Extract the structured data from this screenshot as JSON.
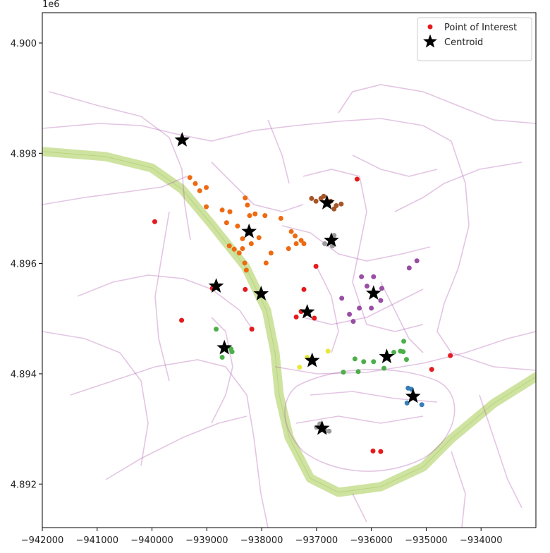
{
  "chart_data": {
    "type": "scatter",
    "y_offset_label": "1e6",
    "xlim": [
      -942000,
      -933000
    ],
    "ylim": [
      4.89121,
      4.90055
    ],
    "xticks": [
      {
        "value": -942000,
        "label": "−942000"
      },
      {
        "value": -941000,
        "label": "−941000"
      },
      {
        "value": -940000,
        "label": "−940000"
      },
      {
        "value": -939000,
        "label": "−939000"
      },
      {
        "value": -938000,
        "label": "−938000"
      },
      {
        "value": -937000,
        "label": "−937000"
      },
      {
        "value": -936000,
        "label": "−936000"
      },
      {
        "value": -935000,
        "label": "−935000"
      },
      {
        "value": -934000,
        "label": "−934000"
      }
    ],
    "yticks": [
      {
        "value": 4.892,
        "label": "4.892"
      },
      {
        "value": 4.894,
        "label": "4.894"
      },
      {
        "value": 4.896,
        "label": "4.896"
      },
      {
        "value": 4.898,
        "label": "4.898"
      },
      {
        "value": 4.9,
        "label": "4.900"
      }
    ],
    "legend": "upper right",
    "series": [
      {
        "name": "Point of Interest",
        "color": "#e41a1c",
        "marker": "circle",
        "x": [
          -939310,
          -939210,
          -939130,
          -939010,
          -939010,
          -938720,
          -938580,
          -938300,
          -938260,
          -938220,
          -938120,
          -937940,
          -937650,
          -937460,
          -937390,
          -937280,
          -937230,
          -937830,
          -937510,
          -937920,
          -938280,
          -938310,
          -938590,
          -938500,
          -938410,
          -938350,
          -938190,
          -938640,
          -938440,
          -938350,
          -938050,
          -937370,
          -939950,
          -936260,
          -938300,
          -939460,
          -938180,
          -937230,
          -937010,
          -937370,
          -937280,
          -937040,
          -934900,
          -934560,
          -935970,
          -935830,
          -938900,
          -937090,
          -937010,
          -936920,
          -936870,
          -936740,
          -936640,
          -936550,
          -936680,
          -936850,
          -936710,
          -936680,
          -937000,
          -936940,
          -936830,
          -936770,
          -936180,
          -936080,
          -935960,
          -935830,
          -936000,
          -936220,
          -936400,
          -936330,
          -936540,
          -935310,
          -935170,
          -935810,
          -938830,
          -938720,
          -938540,
          -938560,
          -936510,
          -936300,
          -936140,
          -935960,
          -935770,
          -935590,
          -935470,
          -935410,
          -935360,
          -935420,
          -936240,
          -935330,
          -935270,
          -935080,
          -935350,
          -935210,
          -937310,
          -936790,
          -937170
        ],
        "values": [
          4.89756,
          4.89745,
          4.89732,
          4.89738,
          4.89703,
          4.89697,
          4.89694,
          4.89719,
          4.89706,
          4.89687,
          4.8969,
          4.89687,
          4.89682,
          4.89658,
          4.8965,
          4.89642,
          4.89636,
          4.89619,
          4.89627,
          4.89601,
          4.89588,
          4.89601,
          4.89632,
          4.89626,
          4.89619,
          4.89627,
          4.89636,
          4.89674,
          4.89668,
          4.89645,
          4.89647,
          4.89636,
          4.89676,
          4.89753,
          4.89553,
          4.89497,
          4.89481,
          4.89553,
          4.89595,
          4.89503,
          4.89513,
          4.89501,
          4.89408,
          4.89433,
          4.8926,
          4.89259,
          4.89555,
          4.89718,
          4.89713,
          4.89718,
          4.89722,
          4.89713,
          4.89705,
          4.89708,
          4.89699,
          4.89636,
          4.89632,
          4.89651,
          4.89303,
          4.89309,
          4.89296,
          4.89296,
          4.89576,
          4.89559,
          4.89576,
          4.89533,
          4.89519,
          4.89519,
          4.89508,
          4.89495,
          4.89537,
          4.89592,
          4.89605,
          4.89555,
          4.89481,
          4.8943,
          4.8944,
          4.89445,
          4.89403,
          4.89427,
          4.89422,
          4.89422,
          4.8941,
          4.89439,
          4.89441,
          4.89459,
          4.89426,
          4.8944,
          4.89404,
          4.89374,
          4.89372,
          4.89344,
          4.89347,
          4.8936,
          4.89412,
          4.89441,
          4.8943
        ],
        "colors": [
          "#ed6a12",
          "#ed6a12",
          "#ed6a12",
          "#ed6a12",
          "#ed6a12",
          "#ed6a12",
          "#ed6a12",
          "#ed6a12",
          "#ed6a12",
          "#ed6a12",
          "#ed6a12",
          "#ed6a12",
          "#ed6a12",
          "#ed6a12",
          "#ed6a12",
          "#ed6a12",
          "#ed6a12",
          "#ed6a12",
          "#ed6a12",
          "#ed6a12",
          "#ed6a12",
          "#ed6a12",
          "#ed6a12",
          "#ed6a12",
          "#ed6a12",
          "#ed6a12",
          "#ed6a12",
          "#ed6a12",
          "#ed6a12",
          "#ed6a12",
          "#ed6a12",
          "#ed6a12",
          "#e41a1c",
          "#e41a1c",
          "#e41a1c",
          "#e41a1c",
          "#e41a1c",
          "#e41a1c",
          "#e41a1c",
          "#e41a1c",
          "#e41a1c",
          "#e41a1c",
          "#e41a1c",
          "#e41a1c",
          "#e41a1c",
          "#e41a1c",
          "#e41a1c",
          "#a65628",
          "#a65628",
          "#a65628",
          "#a65628",
          "#a65628",
          "#a65628",
          "#a65628",
          "#a65628",
          "#999999",
          "#999999",
          "#999999",
          "#999999",
          "#999999",
          "#999999",
          "#999999",
          "#984ea3",
          "#984ea3",
          "#984ea3",
          "#984ea3",
          "#984ea3",
          "#984ea3",
          "#984ea3",
          "#984ea3",
          "#984ea3",
          "#984ea3",
          "#984ea3",
          "#984ea3",
          "#4daf4a",
          "#4daf4a",
          "#4daf4a",
          "#4daf4a",
          "#4daf4a",
          "#4daf4a",
          "#4daf4a",
          "#4daf4a",
          "#4daf4a",
          "#4daf4a",
          "#4daf4a",
          "#4daf4a",
          "#4daf4a",
          "#4daf4a",
          "#4daf4a",
          "#377eb8",
          "#377eb8",
          "#377eb8",
          "#377eb8",
          "#377eb8",
          "#e8e83a",
          "#e8e83a",
          "#e8e83a"
        ]
      },
      {
        "name": "Centroid",
        "color": "#000000",
        "marker": "star",
        "x": [
          -939450,
          -936810,
          -938230,
          -936730,
          -938830,
          -938010,
          -935960,
          -937170,
          -938680,
          -937080,
          -935720,
          -935240,
          -936900
        ],
        "values": [
          4.89824,
          4.8971,
          4.89658,
          4.89642,
          4.89559,
          4.89545,
          4.89546,
          4.89512,
          4.89447,
          4.89424,
          4.89431,
          4.89359,
          4.89301
        ]
      }
    ]
  }
}
